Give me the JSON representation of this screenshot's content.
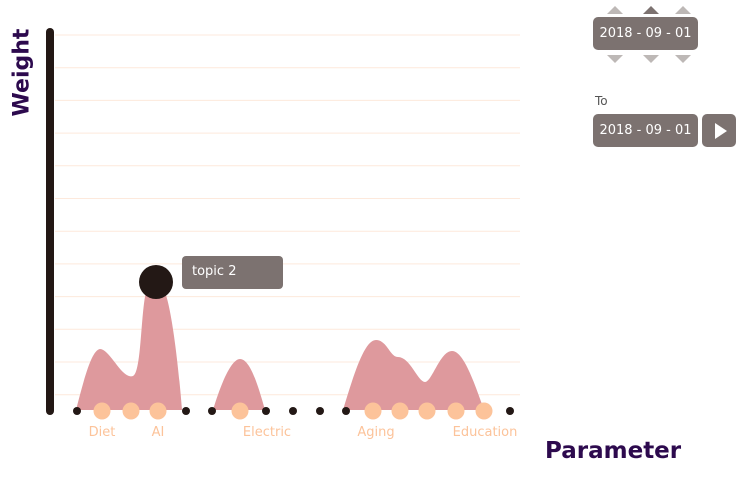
{
  "chart_data": {
    "type": "area",
    "title": "",
    "xlabel": "Parameter",
    "ylabel": "Weight",
    "categories": [
      "Diet",
      "AI",
      "Electric",
      "Aging",
      "Education"
    ],
    "tooltip": "topic 2",
    "colors": {
      "area": "#de999d",
      "dot": "#231815",
      "highlight": "#fcc39a",
      "grid": "#fde9dc"
    }
  },
  "controls": {
    "from_date": "2018 -  09  -  01",
    "to_label": "To",
    "to_date": "2018 -  09  -  01"
  }
}
